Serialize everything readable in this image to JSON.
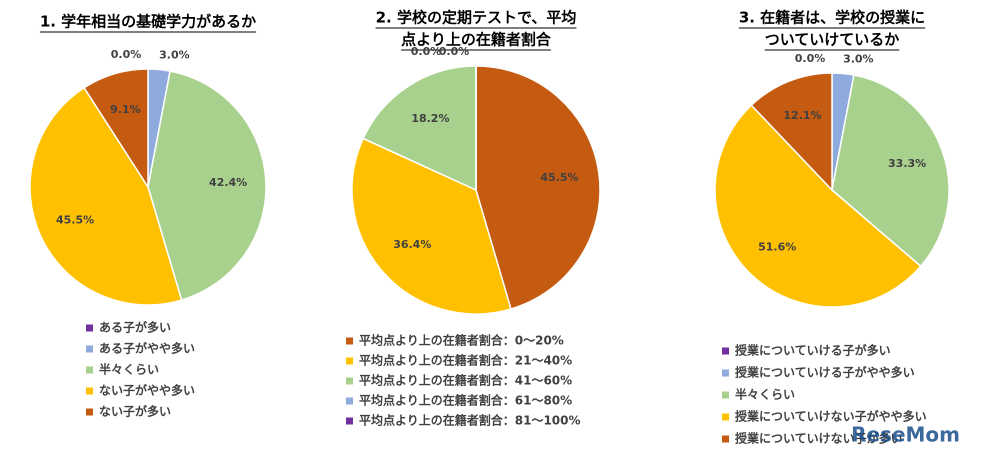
{
  "chart_data": [
    {
      "type": "pie",
      "title": [
        "1. 学年相当の基礎学力があるか"
      ],
      "categories": [
        "ある子が多い",
        "ある子がやや多い",
        "半々くらい",
        "ない子がやや多い",
        "ない子が多い"
      ],
      "values": [
        0.0,
        3.0,
        42.4,
        45.5,
        9.1
      ],
      "value_labels": [
        "0.0%",
        "3.0%",
        "42.4%",
        "45.5%",
        "9.1%"
      ],
      "colors": [
        "#7030a0",
        "#8faadc",
        "#a9d18e",
        "#ffc000",
        "#c55a11"
      ]
    },
    {
      "type": "pie",
      "title": [
        "2. 学校の定期テストで、平均",
        "点より上の在籍者割合"
      ],
      "categories": [
        "平均点より上の在籍者割合：0～20%",
        "平均点より上の在籍者割合：21～40%",
        "平均点より上の在籍者割合：41～60%",
        "平均点より上の在籍者割合：61～80%",
        "平均点より上の在籍者割合：81～100%"
      ],
      "values": [
        45.5,
        36.4,
        18.2,
        0.0,
        0.0
      ],
      "value_labels": [
        "45.5%",
        "36.4%",
        "18.2%",
        "0.0%",
        "0.0%"
      ],
      "colors": [
        "#c55a11",
        "#ffc000",
        "#a9d18e",
        "#8faadc",
        "#7030a0"
      ]
    },
    {
      "type": "pie",
      "title": [
        "3. 在籍者は、学校の授業に",
        "ついていけているか"
      ],
      "categories": [
        "授業についていける子が多い",
        "授業についていける子がやや多い",
        "半々くらい",
        "授業についていけない子がやや多い",
        "授業についていけない子が多い"
      ],
      "values": [
        0.0,
        3.0,
        33.3,
        51.6,
        12.1
      ],
      "value_labels": [
        "0.0%",
        "3.0%",
        "33.3%",
        "51.6%",
        "12.1%"
      ],
      "colors": [
        "#7030a0",
        "#8faadc",
        "#a9d18e",
        "#ffc000",
        "#c55a11"
      ]
    }
  ],
  "watermark": "ReseMom"
}
